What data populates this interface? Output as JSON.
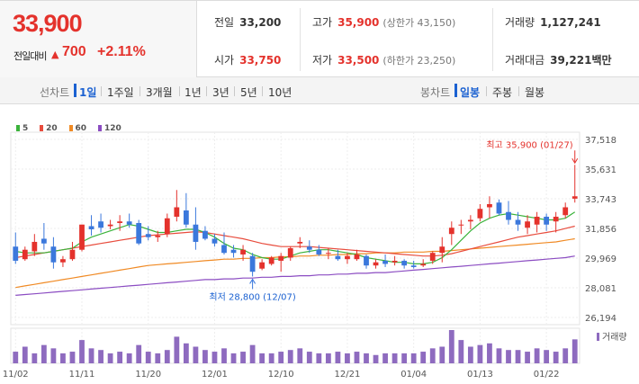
{
  "quote": {
    "price": "33,900",
    "change_label": "전일대비",
    "change_value": "700",
    "change_pct": "+2.11%",
    "stats": {
      "prev_close_label": "전일",
      "prev_close": "33,200",
      "open_label": "시가",
      "open": "33,750",
      "high_label": "고가",
      "high": "35,900",
      "upper_limit": "(상한가 43,150)",
      "low_label": "저가",
      "low": "33,500",
      "lower_limit": "(하한가 23,250)",
      "volume_label": "거래량",
      "volume": "1,127,241",
      "amount_label": "거래대금",
      "amount": "39,221",
      "amount_unit": "백만"
    }
  },
  "tabs": {
    "line_label": "선차트",
    "line_tabs": [
      "1일",
      "1주일",
      "3개월",
      "1년",
      "3년",
      "5년",
      "10년"
    ],
    "line_active": "1일",
    "candle_label": "봉차트",
    "candle_tabs": [
      "일봉",
      "주봉",
      "월봉"
    ],
    "candle_active": "일봉"
  },
  "colors": {
    "up": "#e4322c",
    "down": "#3b78dc",
    "ma5": "#3bb33b",
    "ma20": "#e84c3d",
    "ma60": "#f08a24",
    "ma120": "#8b4cc2",
    "volume": "#8e6bbf"
  },
  "chart_data": {
    "type": "candlestick",
    "legend": [
      "5",
      "20",
      "60",
      "120"
    ],
    "y_ticks": [
      "37,518",
      "35,631",
      "33,743",
      "31,856",
      "29,969",
      "28,081",
      "26,194"
    ],
    "ylim": [
      26194,
      37518
    ],
    "x_ticks": [
      "11/02",
      "11/11",
      "11/20",
      "12/01",
      "12/10",
      "12/21",
      "01/04",
      "01/13",
      "01/22"
    ],
    "x_tick_index": [
      0,
      7,
      14,
      21,
      28,
      35,
      42,
      49,
      56
    ],
    "annotations": {
      "high_label": "최고 35,900 (01/27)",
      "high_index": 59,
      "high_value": 35900,
      "low_label": "최저 28,800 (12/07)",
      "low_index": 25,
      "low_value": 28800
    },
    "volume_label": "거래량",
    "candles": [
      [
        30700,
        31600,
        29600,
        29800
      ],
      [
        29900,
        30700,
        29800,
        30500
      ],
      [
        30400,
        31500,
        30100,
        31000
      ],
      [
        31200,
        32200,
        30500,
        30900
      ],
      [
        30700,
        31300,
        29300,
        29700
      ],
      [
        29700,
        30100,
        29400,
        29900
      ],
      [
        29900,
        31000,
        29800,
        30500
      ],
      [
        30500,
        32100,
        30400,
        32100
      ],
      [
        32000,
        32700,
        31400,
        31800
      ],
      [
        32300,
        32800,
        31600,
        31900
      ],
      [
        32000,
        32400,
        31800,
        32100
      ],
      [
        32200,
        32700,
        31700,
        32300
      ],
      [
        32300,
        32800,
        31900,
        32100
      ],
      [
        32200,
        32400,
        30800,
        30900
      ],
      [
        31500,
        32000,
        31100,
        31300
      ],
      [
        31300,
        31700,
        31000,
        31400
      ],
      [
        31500,
        32800,
        31300,
        32500
      ],
      [
        32600,
        34300,
        32300,
        33200
      ],
      [
        33000,
        34100,
        31900,
        32100
      ],
      [
        32100,
        33200,
        30500,
        31000
      ],
      [
        31700,
        32000,
        31100,
        31200
      ],
      [
        31200,
        31500,
        30700,
        30900
      ],
      [
        30800,
        31600,
        30200,
        30300
      ],
      [
        30500,
        30800,
        30000,
        30300
      ],
      [
        30200,
        30800,
        29800,
        30500
      ],
      [
        30100,
        30300,
        28800,
        29100
      ],
      [
        29300,
        29900,
        29200,
        29700
      ],
      [
        29600,
        30100,
        29500,
        30000
      ],
      [
        29800,
        30300,
        29100,
        30100
      ],
      [
        30000,
        30700,
        29800,
        30600
      ],
      [
        30900,
        31300,
        30600,
        31000
      ],
      [
        30700,
        31100,
        30300,
        30500
      ],
      [
        30500,
        30800,
        30100,
        30200
      ],
      [
        30300,
        30600,
        29900,
        30300
      ],
      [
        30100,
        30500,
        29800,
        29900
      ],
      [
        29900,
        30300,
        29600,
        30100
      ],
      [
        29900,
        30500,
        29800,
        30200
      ],
      [
        30100,
        30200,
        29300,
        29500
      ],
      [
        29500,
        29900,
        29300,
        29700
      ],
      [
        29800,
        30200,
        29400,
        29600
      ],
      [
        29700,
        30100,
        29500,
        29800
      ],
      [
        29800,
        29900,
        29300,
        29500
      ],
      [
        29500,
        29800,
        29300,
        29400
      ],
      [
        29500,
        29900,
        29400,
        29600
      ],
      [
        29800,
        30400,
        29600,
        30300
      ],
      [
        30300,
        31300,
        29700,
        30700
      ],
      [
        31500,
        32300,
        30800,
        31900
      ],
      [
        32100,
        32400,
        31500,
        32100
      ],
      [
        32300,
        32700,
        31800,
        32400
      ],
      [
        32500,
        33400,
        32300,
        33100
      ],
      [
        33200,
        33900,
        32500,
        33400
      ],
      [
        33500,
        33700,
        32700,
        32800
      ],
      [
        32900,
        33600,
        32100,
        32400
      ],
      [
        32400,
        32900,
        31700,
        32100
      ],
      [
        31900,
        32700,
        31500,
        32300
      ],
      [
        32100,
        32900,
        31600,
        32600
      ],
      [
        32600,
        32800,
        31700,
        32100
      ],
      [
        32300,
        32900,
        31600,
        32600
      ],
      [
        32700,
        33500,
        32500,
        33200
      ],
      [
        33750,
        35900,
        33500,
        33900
      ]
    ],
    "ma5": [
      30400,
      30300,
      30300,
      30300,
      30400,
      30500,
      30600,
      31000,
      31300,
      31500,
      31700,
      31900,
      32100,
      32000,
      31800,
      31600,
      31600,
      31700,
      31800,
      31800,
      31600,
      31300,
      30900,
      30600,
      30500,
      30200,
      30000,
      29900,
      29900,
      30100,
      30300,
      30400,
      30500,
      30500,
      30400,
      30300,
      30200,
      30000,
      29900,
      29800,
      29700,
      29700,
      29600,
      29600,
      29700,
      30000,
      30500,
      31100,
      31700,
      32200,
      32500,
      32700,
      32800,
      32700,
      32600,
      32500,
      32400,
      32400,
      32500,
      32900
    ],
    "ma20": [
      30000,
      30100,
      30200,
      30300,
      30400,
      30500,
      30600,
      30700,
      30800,
      30900,
      31000,
      31100,
      31200,
      31300,
      31400,
      31450,
      31500,
      31550,
      31600,
      31650,
      31600,
      31500,
      31400,
      31300,
      31200,
      31050,
      30900,
      30800,
      30700,
      30700,
      30700,
      30700,
      30650,
      30600,
      30550,
      30500,
      30450,
      30400,
      30350,
      30300,
      30250,
      30200,
      30150,
      30100,
      30100,
      30150,
      30250,
      30400,
      30550,
      30700,
      30850,
      31000,
      31150,
      31300,
      31400,
      31500,
      31600,
      31700,
      31850,
      32000
    ],
    "ma60": [
      28100,
      28200,
      28300,
      28400,
      28500,
      28600,
      28700,
      28800,
      28900,
      29000,
      29100,
      29200,
      29300,
      29400,
      29500,
      29550,
      29600,
      29650,
      29700,
      29750,
      29800,
      29850,
      29900,
      29900,
      29950,
      29950,
      30000,
      30000,
      30050,
      30050,
      30100,
      30100,
      30150,
      30150,
      30200,
      30200,
      30250,
      30250,
      30300,
      30300,
      30300,
      30350,
      30350,
      30350,
      30400,
      30400,
      30450,
      30500,
      30550,
      30600,
      30650,
      30700,
      30750,
      30800,
      30850,
      30900,
      30950,
      31000,
      31100,
      31200
    ],
    "ma120": [
      27600,
      27650,
      27700,
      27750,
      27800,
      27850,
      27900,
      27950,
      28000,
      28050,
      28100,
      28150,
      28200,
      28250,
      28300,
      28350,
      28400,
      28450,
      28500,
      28550,
      28600,
      28600,
      28650,
      28650,
      28700,
      28700,
      28750,
      28750,
      28800,
      28800,
      28850,
      28850,
      28900,
      28900,
      28950,
      28950,
      29000,
      29000,
      29050,
      29050,
      29100,
      29150,
      29200,
      29250,
      29300,
      29350,
      29400,
      29450,
      29500,
      29550,
      29600,
      29650,
      29700,
      29750,
      29800,
      29850,
      29900,
      29950,
      30000,
      30100
    ],
    "volume": [
      0.35,
      0.5,
      0.3,
      0.55,
      0.45,
      0.3,
      0.35,
      0.7,
      0.45,
      0.4,
      0.3,
      0.35,
      0.3,
      0.55,
      0.35,
      0.3,
      0.4,
      0.8,
      0.6,
      0.5,
      0.4,
      0.35,
      0.45,
      0.3,
      0.35,
      0.55,
      0.3,
      0.3,
      0.35,
      0.4,
      0.45,
      0.35,
      0.3,
      0.3,
      0.35,
      0.3,
      0.35,
      0.3,
      0.25,
      0.3,
      0.3,
      0.3,
      0.3,
      0.35,
      0.45,
      0.5,
      1.0,
      0.7,
      0.5,
      0.55,
      0.6,
      0.45,
      0.4,
      0.4,
      0.35,
      0.45,
      0.4,
      0.35,
      0.45,
      0.72
    ]
  }
}
